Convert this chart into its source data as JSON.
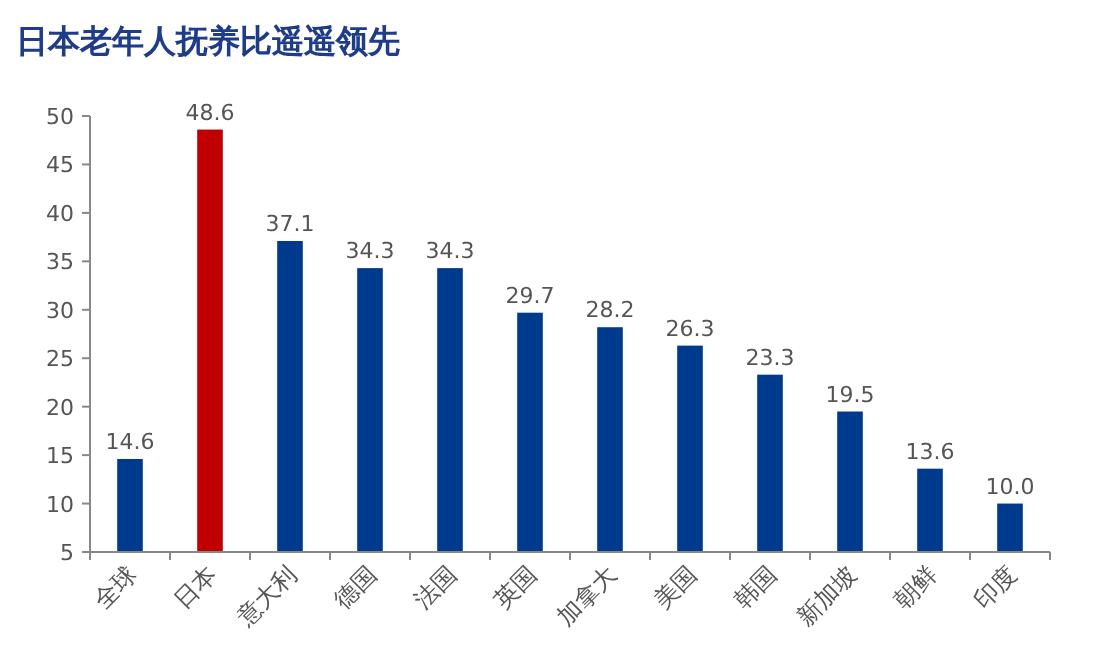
{
  "chart_data": {
    "type": "bar",
    "title": "日本老年人抚养比遥遥领先",
    "categories": [
      "全球",
      "日本",
      "意大利",
      "德国",
      "法国",
      "英国",
      "加拿大",
      "美国",
      "韩国",
      "新加坡",
      "朝鲜",
      "印度"
    ],
    "values": [
      14.6,
      48.6,
      37.1,
      34.3,
      34.3,
      29.7,
      28.2,
      26.3,
      23.3,
      19.5,
      13.6,
      10.0
    ],
    "value_labels": [
      "14.6",
      "48.6",
      "37.1",
      "34.3",
      "34.3",
      "29.7",
      "28.2",
      "26.3",
      "23.3",
      "19.5",
      "13.6",
      "10.0"
    ],
    "colors": [
      "#003a8c",
      "#c00000",
      "#003a8c",
      "#003a8c",
      "#003a8c",
      "#003a8c",
      "#003a8c",
      "#003a8c",
      "#003a8c",
      "#003a8c",
      "#003a8c",
      "#003a8c"
    ],
    "ylim": [
      5,
      50
    ],
    "yticks": [
      5,
      10,
      15,
      20,
      25,
      30,
      35,
      40,
      45,
      50
    ],
    "grid": false
  }
}
